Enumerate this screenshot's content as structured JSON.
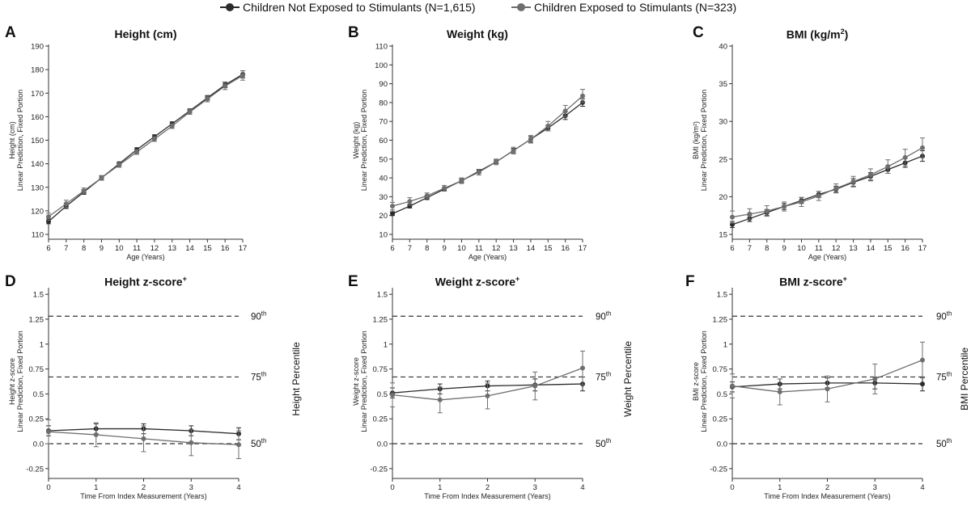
{
  "colors": {
    "not_exposed": "#2b2b2b",
    "exposed": "#6e6e6e",
    "axis": "#333333",
    "refline": "#333333"
  },
  "legend": {
    "not_exposed_label": "Children Not Exposed to Stimulants (N=1,615)",
    "exposed_label": "Children Exposed to Stimulants (N=323)"
  },
  "panels": [
    {
      "label": "A",
      "title": "Height (cm)"
    },
    {
      "label": "B",
      "title": "Weight (kg)"
    },
    {
      "label": "C",
      "title": "BMI (kg/m",
      "title_sup": "2",
      "title_suffix": ")"
    },
    {
      "label": "D",
      "title": "Height z-score",
      "title_sup": "+"
    },
    {
      "label": "E",
      "title": "Weight z-score",
      "title_sup": "+"
    },
    {
      "label": "F",
      "title": "BMI z-score",
      "title_sup": "+"
    }
  ],
  "chart_data": [
    {
      "id": "A",
      "type": "line",
      "title": "Height (cm)",
      "xlabel": "Age (Years)",
      "ylabel_line1": "Height (cm)",
      "ylabel_line2": "Linear Prediction, Fixed Portion",
      "x": [
        6,
        7,
        8,
        9,
        10,
        11,
        12,
        13,
        14,
        15,
        16,
        17
      ],
      "xlim": [
        6,
        17
      ],
      "ylim": [
        110,
        190
      ],
      "yticks": [
        110,
        120,
        130,
        140,
        150,
        160,
        170,
        180,
        190
      ],
      "series": [
        {
          "name": "Children Not Exposed to Stimulants (N=1,615)",
          "key": "not_exposed",
          "values": [
            115.5,
            122,
            128,
            134,
            140,
            146,
            151.5,
            157,
            162.5,
            168,
            173.5,
            178
          ],
          "err": [
            1,
            1,
            1,
            0.8,
            0.8,
            0.8,
            0.8,
            0.8,
            0.8,
            1,
            1.2,
            1.5
          ]
        },
        {
          "name": "Children Exposed to Stimulants (N=323)",
          "key": "exposed",
          "values": [
            117.5,
            123,
            128.5,
            134,
            139.5,
            145,
            150.5,
            156,
            162,
            167.5,
            173,
            177.5
          ],
          "err": [
            1.5,
            1.5,
            1.2,
            1,
            1,
            1,
            1,
            1,
            1,
            1.2,
            1.5,
            2
          ]
        }
      ]
    },
    {
      "id": "B",
      "type": "line",
      "title": "Weight (kg)",
      "xlabel": "Age (Years)",
      "ylabel_line1": "Weight (kg)",
      "ylabel_line2": "Linear Prediction, Fixed Portion",
      "x": [
        6,
        7,
        8,
        9,
        10,
        11,
        12,
        13,
        14,
        15,
        16,
        17
      ],
      "xlim": [
        6,
        17
      ],
      "ylim": [
        10,
        110
      ],
      "yticks": [
        10,
        20,
        30,
        40,
        50,
        60,
        70,
        80,
        90,
        100,
        110
      ],
      "series": [
        {
          "name": "Children Not Exposed to Stimulants (N=1,615)",
          "key": "not_exposed",
          "values": [
            21,
            25,
            29.5,
            34,
            38.5,
            43.5,
            48.5,
            54.5,
            60.5,
            66.5,
            73,
            80
          ],
          "err": [
            1,
            1,
            1,
            1,
            1,
            1,
            1,
            1.2,
            1.5,
            1.5,
            2,
            2
          ]
        },
        {
          "name": "Children Exposed to Stimulants (N=323)",
          "key": "exposed",
          "values": [
            25,
            27.5,
            30.5,
            34.5,
            38.5,
            43,
            48.5,
            54.5,
            60.5,
            67.5,
            75.5,
            83.5
          ],
          "err": [
            2,
            2,
            1.5,
            1.5,
            1.5,
            1.5,
            1.5,
            1.8,
            2,
            2.5,
            3,
            3.5
          ]
        }
      ]
    },
    {
      "id": "C",
      "type": "line",
      "title": "BMI (kg/m²)",
      "xlabel": "Age (Years)",
      "ylabel_line1": "BMI (kg/m²)",
      "ylabel_line2": "Linear Prediction, Fixed Portion",
      "x": [
        6,
        7,
        8,
        9,
        10,
        11,
        12,
        13,
        14,
        15,
        16,
        17
      ],
      "xlim": [
        6,
        17
      ],
      "ylim": [
        15,
        40
      ],
      "yticks": [
        15,
        20,
        25,
        30,
        35,
        40
      ],
      "series": [
        {
          "name": "Children Not Exposed to Stimulants (N=1,615)",
          "key": "not_exposed",
          "values": [
            16.3,
            17.1,
            17.9,
            18.7,
            19.5,
            20.3,
            21,
            21.9,
            22.7,
            23.6,
            24.5,
            25.4
          ],
          "err": [
            0.4,
            0.4,
            0.4,
            0.4,
            0.4,
            0.4,
            0.4,
            0.5,
            0.5,
            0.5,
            0.6,
            0.7
          ]
        },
        {
          "name": "Children Exposed to Stimulants (N=323)",
          "key": "exposed",
          "values": [
            17.3,
            17.7,
            18.1,
            18.7,
            19.3,
            20.1,
            21.1,
            22,
            22.9,
            24,
            25.2,
            26.5
          ],
          "err": [
            0.8,
            0.7,
            0.7,
            0.6,
            0.6,
            0.6,
            0.6,
            0.7,
            0.8,
            0.9,
            1.1,
            1.3
          ]
        }
      ]
    },
    {
      "id": "D",
      "type": "line",
      "title": "Height z-score+",
      "xlabel": "Time From Index Measurement (Years)",
      "ylabel_line1": "Height z-score",
      "ylabel_line2": "Linear Prediction, Fixed Portion",
      "side_label": "Height Percentile",
      "x": [
        0,
        1,
        2,
        3,
        4
      ],
      "xlim": [
        0,
        4
      ],
      "ylim": [
        -0.3,
        1.55
      ],
      "yticks": [
        -0.25,
        0,
        0.25,
        0.5,
        0.75,
        1,
        1.25,
        1.5
      ],
      "ytick_labels": [
        "-0.25",
        "0.0",
        "0.25",
        "0.5",
        "0.75",
        "1",
        "1.25",
        "1.5"
      ],
      "reference_lines": [
        {
          "y": 1.28,
          "label": "90",
          "sup": "th"
        },
        {
          "y": 0.67,
          "label": "75",
          "sup": "th"
        },
        {
          "y": 0,
          "label": "50",
          "sup": "th"
        }
      ],
      "series": [
        {
          "name": "Children Not Exposed to Stimulants (N=1,615)",
          "key": "not_exposed",
          "values": [
            0.13,
            0.15,
            0.15,
            0.13,
            0.1
          ],
          "err": [
            0.05,
            0.05,
            0.05,
            0.05,
            0.06
          ]
        },
        {
          "name": "Children Exposed to Stimulants (N=323)",
          "key": "exposed",
          "values": [
            0.12,
            0.09,
            0.05,
            0.01,
            -0.01
          ],
          "err": [
            0.12,
            0.12,
            0.13,
            0.13,
            0.14
          ]
        }
      ]
    },
    {
      "id": "E",
      "type": "line",
      "title": "Weight z-score+",
      "xlabel": "Time From Index Measurement (Years)",
      "ylabel_line1": "Weight z-score",
      "ylabel_line2": "Linear Prediction, Fixed Portion",
      "side_label": "Weight Percentile",
      "x": [
        0,
        1,
        2,
        3,
        4
      ],
      "xlim": [
        0,
        4
      ],
      "ylim": [
        -0.3,
        1.55
      ],
      "yticks": [
        -0.25,
        0,
        0.25,
        0.5,
        0.75,
        1,
        1.25,
        1.5
      ],
      "ytick_labels": [
        "-0.25",
        "0.0",
        "0.25",
        "0.5",
        "0.75",
        "1",
        "1.25",
        "1.5"
      ],
      "reference_lines": [
        {
          "y": 1.28,
          "label": "90",
          "sup": "th"
        },
        {
          "y": 0.67,
          "label": "75",
          "sup": "th"
        },
        {
          "y": 0,
          "label": "50",
          "sup": "th"
        }
      ],
      "series": [
        {
          "name": "Children Not Exposed to Stimulants (N=1,615)",
          "key": "not_exposed",
          "values": [
            0.51,
            0.55,
            0.58,
            0.59,
            0.6
          ],
          "err": [
            0.05,
            0.05,
            0.05,
            0.06,
            0.07
          ]
        },
        {
          "name": "Children Exposed to Stimulants (N=323)",
          "key": "exposed",
          "values": [
            0.49,
            0.44,
            0.48,
            0.58,
            0.76
          ],
          "err": [
            0.12,
            0.13,
            0.13,
            0.14,
            0.17
          ]
        }
      ]
    },
    {
      "id": "F",
      "type": "line",
      "title": "BMI z-score+",
      "xlabel": "Time From Index Measurement (Years)",
      "ylabel_line1": "BMI z-score",
      "ylabel_line2": "Linear Prediction, Fixed Portion",
      "side_label": "BMI Percentile",
      "x": [
        0,
        1,
        2,
        3,
        4
      ],
      "xlim": [
        0,
        4
      ],
      "ylim": [
        -0.3,
        1.55
      ],
      "yticks": [
        -0.25,
        0,
        0.25,
        0.5,
        0.75,
        1,
        1.25,
        1.5
      ],
      "ytick_labels": [
        "-0.25",
        "0.0",
        "0.25",
        "0.5",
        "0.75",
        "1",
        "1.25",
        "1.5"
      ],
      "reference_lines": [
        {
          "y": 1.28,
          "label": "90",
          "sup": "th"
        },
        {
          "y": 0.67,
          "label": "75",
          "sup": "th"
        },
        {
          "y": 0,
          "label": "50",
          "sup": "th"
        }
      ],
      "series": [
        {
          "name": "Children Not Exposed to Stimulants (N=1,615)",
          "key": "not_exposed",
          "values": [
            0.57,
            0.6,
            0.61,
            0.61,
            0.6
          ],
          "err": [
            0.05,
            0.05,
            0.05,
            0.06,
            0.07
          ]
        },
        {
          "name": "Children Exposed to Stimulants (N=323)",
          "key": "exposed",
          "values": [
            0.58,
            0.52,
            0.55,
            0.65,
            0.84
          ],
          "err": [
            0.12,
            0.13,
            0.13,
            0.15,
            0.18
          ]
        }
      ]
    }
  ]
}
